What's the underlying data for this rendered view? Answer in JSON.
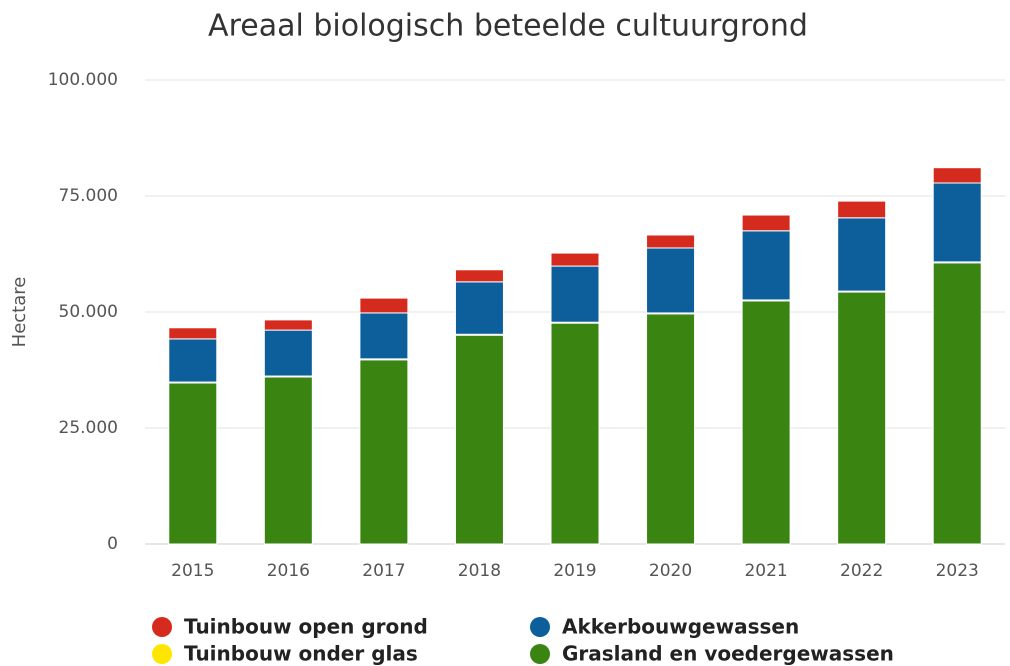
{
  "chart_data": {
    "type": "stacked_bar",
    "title": "Areaal biologisch beteelde cultuurgrond",
    "ylabel": "Hectare",
    "categories": [
      "2015",
      "2016",
      "2017",
      "2018",
      "2019",
      "2020",
      "2021",
      "2022",
      "2023"
    ],
    "series": [
      {
        "name": "Grasland en voedergewassen",
        "color": "#3a8511",
        "values": [
          34700,
          36000,
          39700,
          45000,
          47600,
          49600,
          52400,
          54300,
          60600
        ]
      },
      {
        "name": "Tuinbouw onder glas",
        "color": "#ffe600",
        "values": [
          200,
          200,
          200,
          200,
          200,
          200,
          200,
          200,
          200
        ]
      },
      {
        "name": "Akkerbouwgewassen",
        "color": "#0c5f9a",
        "values": [
          9300,
          9900,
          9900,
          11300,
          12100,
          14000,
          14900,
          15800,
          17000
        ]
      },
      {
        "name": "Tuinbouw open grond",
        "color": "#d52b1e",
        "values": [
          2400,
          2200,
          3200,
          2600,
          2800,
          2800,
          3400,
          3600,
          3300
        ]
      }
    ],
    "ylim": [
      0,
      100000
    ],
    "yticks": [
      0,
      {
        "value": 25000,
        "label": "25.000"
      },
      {
        "value": 50000,
        "label": "50.000"
      },
      {
        "value": 75000,
        "label": "75.000"
      },
      {
        "value": 100000,
        "label": "100.000"
      }
    ],
    "grid": true
  }
}
